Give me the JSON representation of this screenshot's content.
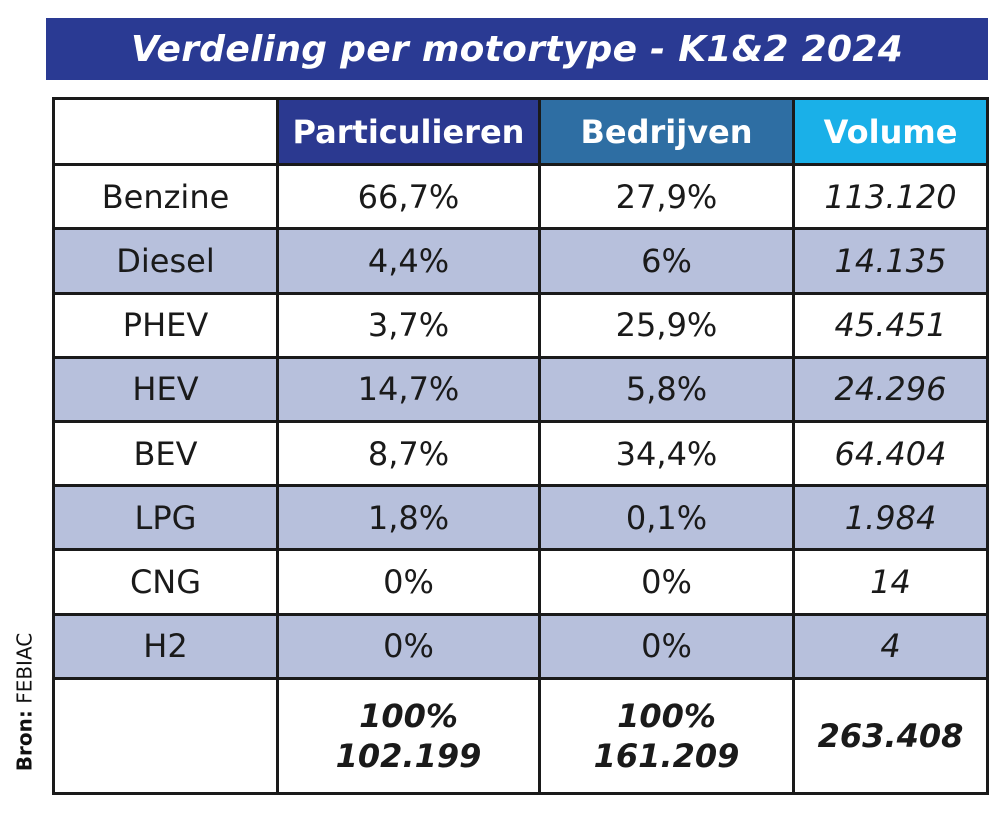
{
  "title": "Verdeling per motortype - K1&2 2024",
  "source": {
    "label": "Bron:",
    "value": "FEBIAC"
  },
  "colors": {
    "title_bg": "#2a3a93",
    "header_particulieren": "#2b3990",
    "header_bedrijven": "#2e6ea3",
    "header_volume": "#1ab0e8",
    "row_shade": "#b7c0dc"
  },
  "chart_data": {
    "type": "table",
    "title": "Verdeling per motortype - K1&2 2024",
    "columns": [
      "",
      "Particulieren",
      "Bedrijven",
      "Volume"
    ],
    "rows": [
      {
        "motor": "Benzine",
        "particulieren": "66,7%",
        "bedrijven": "27,9%",
        "volume": "113.120"
      },
      {
        "motor": "Diesel",
        "particulieren": "4,4%",
        "bedrijven": "6%",
        "volume": "14.135"
      },
      {
        "motor": "PHEV",
        "particulieren": "3,7%",
        "bedrijven": "25,9%",
        "volume": "45.451"
      },
      {
        "motor": "HEV",
        "particulieren": "14,7%",
        "bedrijven": "5,8%",
        "volume": "24.296"
      },
      {
        "motor": "BEV",
        "particulieren": "8,7%",
        "bedrijven": "34,4%",
        "volume": "64.404"
      },
      {
        "motor": "LPG",
        "particulieren": "1,8%",
        "bedrijven": "0,1%",
        "volume": "1.984"
      },
      {
        "motor": "CNG",
        "particulieren": "0%",
        "bedrijven": "0%",
        "volume": "14"
      },
      {
        "motor": "H2",
        "particulieren": "0%",
        "bedrijven": "0%",
        "volume": "4"
      }
    ],
    "totals": {
      "particulieren_pct": "100%",
      "particulieren_count": "102.199",
      "bedrijven_pct": "100%",
      "bedrijven_count": "161.209",
      "volume": "263.408"
    }
  }
}
